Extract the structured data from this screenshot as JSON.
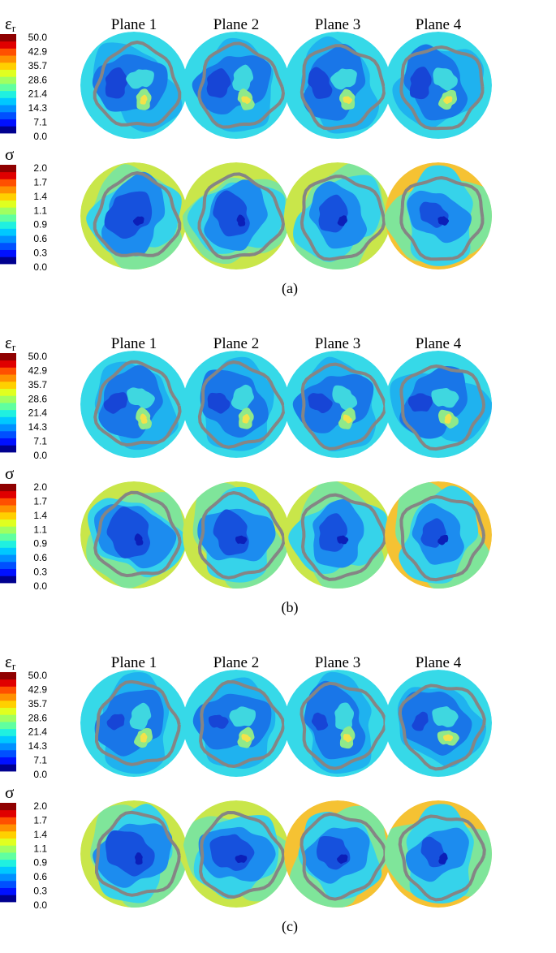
{
  "panels": [
    {
      "label": "(a)",
      "planes": [
        "Plane 1",
        "Plane 2",
        "Plane 3",
        "Plane 4"
      ],
      "rows": [
        {
          "symbol": "ε",
          "subscript": "r",
          "ticks": [
            "50.0",
            "42.9",
            "35.7",
            "28.6",
            "21.4",
            "14.3",
            "7.1",
            "0.0"
          ]
        },
        {
          "symbol": "σ",
          "ticks": [
            "2.0",
            "1.7",
            "1.4",
            "1.1",
            "0.9",
            "0.6",
            "0.3",
            "0.0"
          ]
        }
      ]
    },
    {
      "label": "(b)",
      "planes": [
        "Plane 1",
        "Plane 2",
        "Plane 3",
        "Plane 4"
      ],
      "rows": [
        {
          "symbol": "ε",
          "subscript": "r",
          "ticks": [
            "50.0",
            "42.9",
            "35.7",
            "28.6",
            "21.4",
            "14.3",
            "7.1",
            "0.0"
          ]
        },
        {
          "symbol": "σ",
          "ticks": [
            "2.0",
            "1.7",
            "1.4",
            "1.1",
            "0.9",
            "0.6",
            "0.3",
            "0.0"
          ]
        }
      ]
    },
    {
      "label": "(c)",
      "planes": [
        "Plane 1",
        "Plane 2",
        "Plane 3",
        "Plane 4"
      ],
      "rows": [
        {
          "symbol": "ε",
          "subscript": "r",
          "ticks": [
            "50.0",
            "42.9",
            "35.7",
            "28.6",
            "21.4",
            "14.3",
            "7.1",
            "0.0"
          ]
        },
        {
          "symbol": "σ",
          "ticks": [
            "2.0",
            "1.7",
            "1.4",
            "1.1",
            "0.9",
            "0.6",
            "0.3",
            "0.0"
          ]
        }
      ]
    }
  ]
}
